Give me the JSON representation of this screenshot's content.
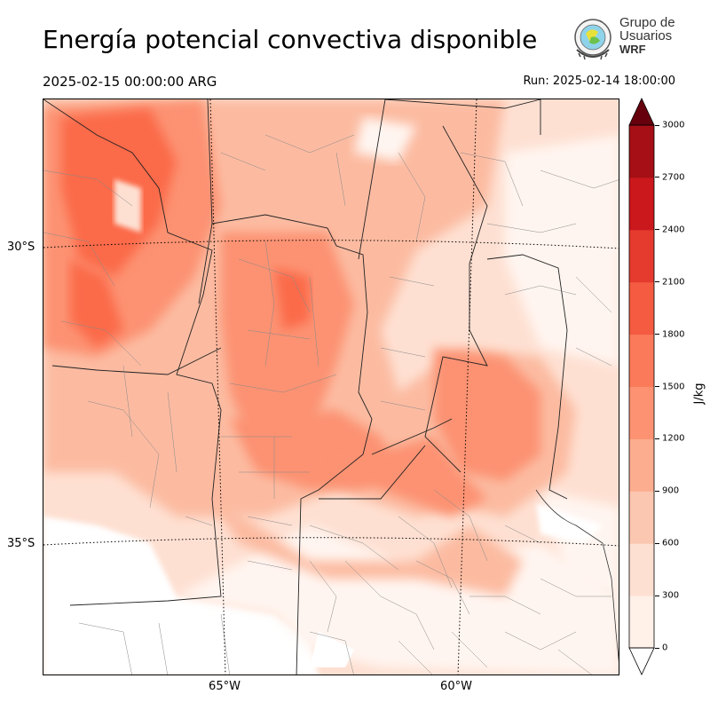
{
  "title": "Energía potencial convectiva disponible",
  "valid_time": "2025-02-15 00:00:00 ARG",
  "run_time": "Run: 2025-02-14 18:00:00",
  "logo": {
    "line1": "Grupo de",
    "line2": "Usuarios",
    "line3": "WRF"
  },
  "map": {
    "latitude_labels": [
      "30°S",
      "35°S"
    ],
    "longitude_labels": [
      "65°W",
      "60°W"
    ]
  },
  "colorbar": {
    "unit": "J/kg",
    "ticks": [
      "0",
      "300",
      "600",
      "900",
      "1200",
      "1500",
      "1800",
      "2100",
      "2400",
      "2700",
      "3000"
    ],
    "colors": [
      "#fff5f0",
      "#fee0d2",
      "#fcbba1",
      "#fc9272",
      "#fb6a4a",
      "#ef3b2c",
      "#cb181d",
      "#a50f15",
      "#67000d"
    ],
    "extend": "both"
  }
}
